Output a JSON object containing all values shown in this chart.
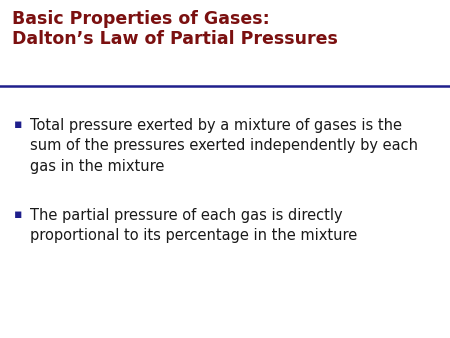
{
  "title_line1": "Basic Properties of Gases:",
  "title_line2": "Dalton’s Law of Partial Pressures",
  "title_color": "#7B1010",
  "separator_color": "#1F1F8C",
  "background_color": "#ffffff",
  "bullet_color": "#1F1F8C",
  "text_color": "#1a1a1a",
  "bullet1_line1": "Total pressure exerted by a mixture of gases is the",
  "bullet1_line2": "sum of the pressures exerted independently by each",
  "bullet1_line3": "gas in the mixture",
  "bullet2_line1": "The partial pressure of each gas is directly",
  "bullet2_line2": "proportional to its percentage in the mixture",
  "title_fontsize": 12.5,
  "body_fontsize": 10.5,
  "bullet_fontsize": 9.0
}
